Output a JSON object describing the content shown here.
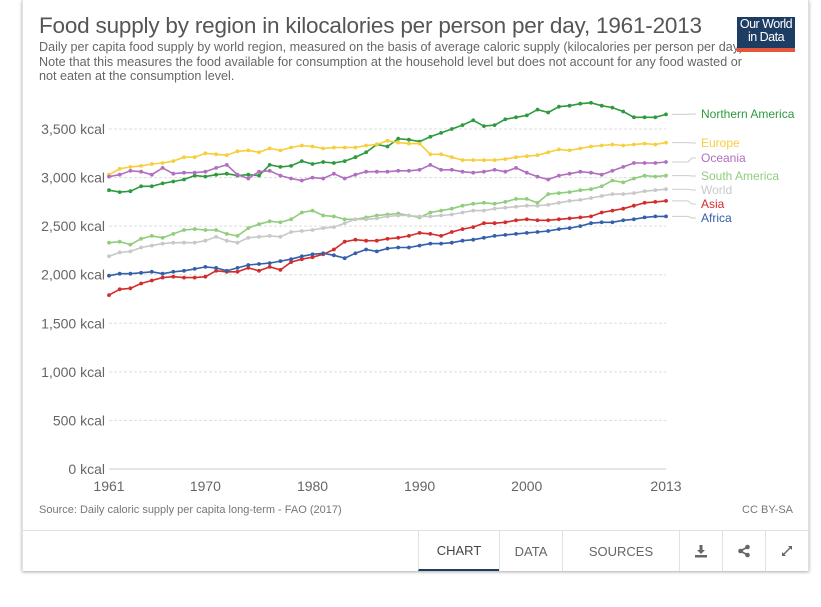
{
  "header": {
    "title": "Food supply by region in kilocalories per person per day, 1961-2013",
    "subtitle": "Daily per capita food supply by world region, measured on the basis of average caloric supply (kilocalories per person per day). Note that this measures the food available for consumption at the household level but does not account for any food wasted or not eaten at the consumption level.",
    "logo_line1": "Our World",
    "logo_line2": "in Data"
  },
  "footer": {
    "source": "Source: Daily caloric supply per capita long-term - FAO (2017)",
    "license": "CC BY-SA",
    "tabs": [
      {
        "label": "CHART",
        "active": true
      },
      {
        "label": "DATA",
        "active": false
      },
      {
        "label": "SOURCES",
        "active": false
      }
    ],
    "icons": [
      "download-icon",
      "share-icon",
      "expand-icon"
    ]
  },
  "colors": {
    "accent": "#1d3d63",
    "logo_bar": "#e5563a"
  },
  "chart_data": {
    "type": "line",
    "title": "Food supply by region in kilocalories per person per day, 1961-2013",
    "xlabel": "",
    "ylabel": "",
    "unit": "kcal",
    "xlim": [
      1961,
      2013
    ],
    "ylim": [
      0,
      3500
    ],
    "grid": true,
    "legend": "right (inline labels)",
    "x_ticks": [
      "1961",
      "1970",
      "1980",
      "1990",
      "2000",
      "2013"
    ],
    "y_ticks": [
      "0 kcal",
      "500 kcal",
      "1,000 kcal",
      "1,500 kcal",
      "2,000 kcal",
      "2,500 kcal",
      "3,000 kcal",
      "3,500 kcal"
    ],
    "y_tick_values": [
      0,
      500,
      1000,
      1500,
      2000,
      2500,
      3000,
      3500
    ],
    "x_tick_values": [
      1961,
      1970,
      1980,
      1990,
      2000,
      2013
    ],
    "x": [
      1961,
      1962,
      1963,
      1964,
      1965,
      1966,
      1967,
      1968,
      1969,
      1970,
      1971,
      1972,
      1973,
      1974,
      1975,
      1976,
      1977,
      1978,
      1979,
      1980,
      1981,
      1982,
      1983,
      1984,
      1985,
      1986,
      1987,
      1988,
      1989,
      1990,
      1991,
      1992,
      1993,
      1994,
      1995,
      1996,
      1997,
      1998,
      1999,
      2000,
      2001,
      2002,
      2003,
      2004,
      2005,
      2006,
      2007,
      2008,
      2009,
      2010,
      2011,
      2012,
      2013
    ],
    "series": [
      {
        "name": "Northern America",
        "color": "#2e9a3e",
        "values": [
          2870,
          2850,
          2860,
          2910,
          2910,
          2940,
          2960,
          2980,
          3020,
          3010,
          3030,
          3040,
          3020,
          3030,
          3020,
          3130,
          3110,
          3120,
          3170,
          3140,
          3160,
          3150,
          3170,
          3210,
          3260,
          3340,
          3320,
          3400,
          3390,
          3370,
          3420,
          3460,
          3500,
          3540,
          3590,
          3530,
          3540,
          3600,
          3620,
          3640,
          3700,
          3670,
          3730,
          3740,
          3760,
          3770,
          3740,
          3720,
          3680,
          3620,
          3620,
          3620,
          3650
        ]
      },
      {
        "name": "Europe",
        "color": "#f7ce3c",
        "values": [
          3030,
          3090,
          3110,
          3120,
          3140,
          3150,
          3170,
          3210,
          3210,
          3250,
          3240,
          3230,
          3270,
          3280,
          3260,
          3300,
          3280,
          3310,
          3330,
          3320,
          3300,
          3310,
          3310,
          3310,
          3330,
          3340,
          3380,
          3360,
          3350,
          3350,
          3240,
          3240,
          3210,
          3180,
          3180,
          3180,
          3180,
          3190,
          3210,
          3220,
          3230,
          3260,
          3290,
          3280,
          3300,
          3320,
          3330,
          3340,
          3330,
          3340,
          3350,
          3340,
          3360
        ]
      },
      {
        "name": "Oceania",
        "color": "#b06fbf",
        "values": [
          3010,
          3030,
          3070,
          3060,
          3030,
          3100,
          3040,
          3050,
          3050,
          3060,
          3100,
          3130,
          3030,
          2990,
          3060,
          3070,
          3020,
          2990,
          2970,
          3000,
          2990,
          3040,
          2990,
          3030,
          3060,
          3060,
          3060,
          3070,
          3070,
          3080,
          3130,
          3080,
          3080,
          3060,
          3050,
          3060,
          3080,
          3060,
          3100,
          3050,
          3010,
          2980,
          3020,
          3040,
          3060,
          3050,
          3030,
          3070,
          3110,
          3150,
          3150,
          3150,
          3160
        ]
      },
      {
        "name": "South America",
        "color": "#90cd7d",
        "values": [
          2330,
          2340,
          2310,
          2370,
          2400,
          2380,
          2420,
          2460,
          2470,
          2460,
          2460,
          2420,
          2400,
          2480,
          2520,
          2550,
          2540,
          2570,
          2640,
          2660,
          2610,
          2600,
          2570,
          2570,
          2590,
          2610,
          2620,
          2630,
          2610,
          2590,
          2640,
          2660,
          2680,
          2710,
          2730,
          2740,
          2730,
          2750,
          2780,
          2780,
          2740,
          2830,
          2840,
          2850,
          2870,
          2880,
          2910,
          2970,
          2950,
          2990,
          3020,
          3010,
          3020
        ]
      },
      {
        "name": "World",
        "color": "#c8c8c8",
        "values": [
          2190,
          2230,
          2240,
          2280,
          2300,
          2320,
          2330,
          2330,
          2330,
          2350,
          2390,
          2350,
          2330,
          2380,
          2390,
          2400,
          2390,
          2440,
          2450,
          2460,
          2480,
          2490,
          2530,
          2570,
          2570,
          2580,
          2600,
          2610,
          2610,
          2600,
          2600,
          2610,
          2620,
          2640,
          2660,
          2660,
          2680,
          2690,
          2700,
          2710,
          2710,
          2720,
          2740,
          2760,
          2770,
          2790,
          2810,
          2830,
          2830,
          2840,
          2860,
          2870,
          2880
        ]
      },
      {
        "name": "Asia",
        "color": "#d42b2b",
        "values": [
          1790,
          1850,
          1860,
          1910,
          1940,
          1970,
          1980,
          1970,
          1970,
          1980,
          2040,
          2030,
          2030,
          2070,
          2040,
          2080,
          2050,
          2130,
          2160,
          2180,
          2210,
          2260,
          2340,
          2360,
          2350,
          2350,
          2370,
          2380,
          2400,
          2430,
          2420,
          2400,
          2440,
          2470,
          2490,
          2530,
          2530,
          2540,
          2560,
          2570,
          2560,
          2560,
          2570,
          2580,
          2590,
          2600,
          2640,
          2660,
          2680,
          2710,
          2740,
          2750,
          2760
        ]
      },
      {
        "name": "Africa",
        "color": "#3360a9",
        "values": [
          1990,
          2010,
          2010,
          2020,
          2030,
          2010,
          2030,
          2040,
          2060,
          2080,
          2070,
          2040,
          2070,
          2100,
          2110,
          2120,
          2140,
          2160,
          2190,
          2210,
          2220,
          2200,
          2170,
          2220,
          2260,
          2240,
          2270,
          2280,
          2280,
          2300,
          2320,
          2320,
          2330,
          2350,
          2360,
          2380,
          2400,
          2410,
          2420,
          2430,
          2440,
          2450,
          2470,
          2480,
          2500,
          2530,
          2540,
          2540,
          2560,
          2570,
          2590,
          2600,
          2600
        ]
      }
    ]
  }
}
